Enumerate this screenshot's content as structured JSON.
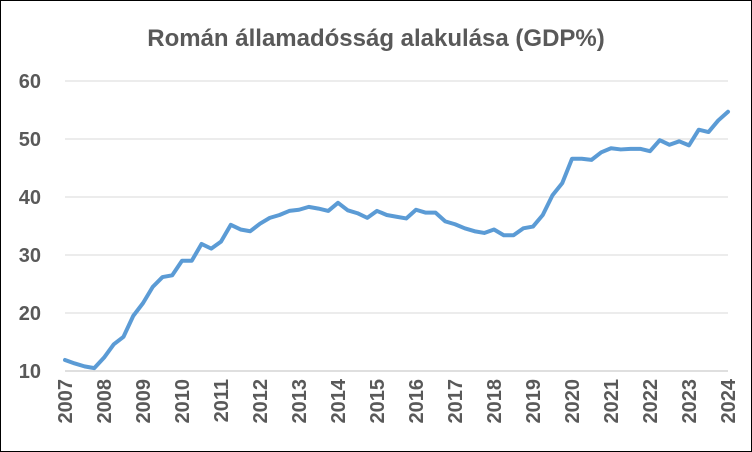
{
  "chart_data": {
    "type": "line",
    "title": "Román államadósság alakulása (GDP%)",
    "xlabel": "",
    "ylabel": "",
    "ylim": [
      10,
      60
    ],
    "yticks": [
      "10",
      "20",
      "30",
      "40",
      "50",
      "60"
    ],
    "xticks": [
      "2007",
      "2008",
      "2009",
      "2010",
      "2011",
      "2012",
      "2013",
      "2014",
      "2015",
      "2016",
      "2017",
      "2018",
      "2019",
      "2020",
      "2021",
      "2022",
      "2023",
      "2024"
    ],
    "xlim": [
      2007,
      2024
    ],
    "grid": true,
    "legend": "none",
    "series_color": "#5b9bd5",
    "series": [
      {
        "x": [
          2007.0,
          2007.25,
          2007.5,
          2007.75,
          2008.0,
          2008.25,
          2008.5,
          2008.75,
          2009.0,
          2009.25,
          2009.5,
          2009.75,
          2010.0,
          2010.25,
          2010.5,
          2010.75,
          2011.0,
          2011.25,
          2011.5,
          2011.75,
          2012.0,
          2012.25,
          2012.5,
          2012.75,
          2013.0,
          2013.25,
          2013.5,
          2013.75,
          2014.0,
          2014.25,
          2014.5,
          2014.75,
          2015.0,
          2015.25,
          2015.5,
          2015.75,
          2016.0,
          2016.25,
          2016.5,
          2016.75,
          2017.0,
          2017.25,
          2017.5,
          2017.75,
          2018.0,
          2018.25,
          2018.5,
          2018.75,
          2019.0,
          2019.25,
          2019.5,
          2019.75,
          2020.0,
          2020.25,
          2020.5,
          2020.75,
          2021.0,
          2021.25,
          2021.5,
          2021.75,
          2022.0,
          2022.25,
          2022.5,
          2022.75,
          2023.0,
          2023.25,
          2023.5,
          2023.75,
          2024.0
        ],
        "values": [
          11.9,
          11.3,
          10.8,
          10.5,
          12.3,
          14.6,
          15.9,
          19.5,
          21.7,
          24.5,
          26.2,
          26.5,
          29.0,
          29.0,
          31.9,
          31.1,
          32.3,
          35.2,
          34.4,
          34.1,
          35.4,
          36.4,
          36.9,
          37.6,
          37.8,
          38.3,
          38.0,
          37.6,
          39.0,
          37.7,
          37.2,
          36.4,
          37.6,
          36.9,
          36.6,
          36.3,
          37.8,
          37.3,
          37.3,
          35.8,
          35.3,
          34.6,
          34.1,
          33.8,
          34.4,
          33.4,
          33.4,
          34.6,
          34.9,
          36.9,
          40.3,
          42.4,
          46.6,
          46.6,
          46.4,
          47.7,
          48.4,
          48.2,
          48.3,
          48.3,
          47.9,
          49.8,
          49.0,
          49.6,
          48.9,
          51.6,
          51.2,
          53.2,
          54.7
        ]
      }
    ]
  }
}
